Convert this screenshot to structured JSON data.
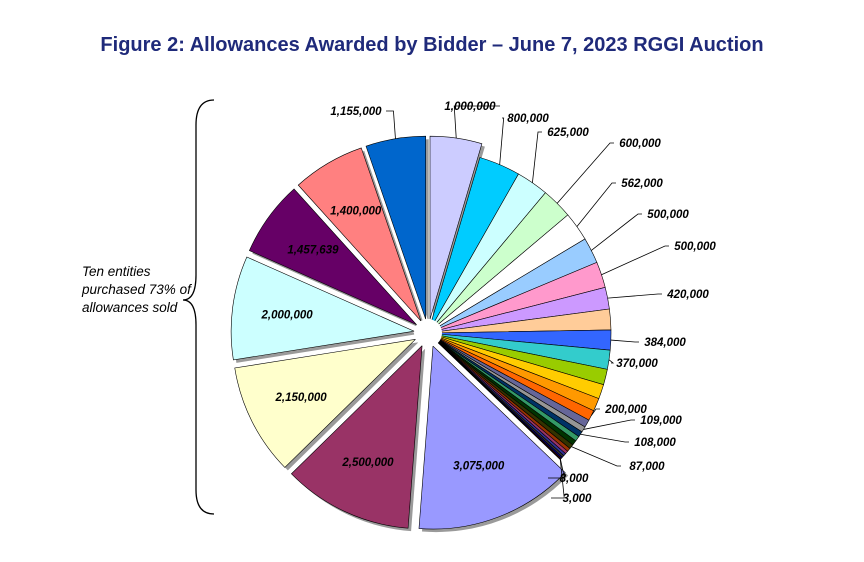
{
  "title": "Figure 2: Allowances Awarded by Bidder – June 7, 2023 RGGI Auction",
  "annotation": "Ten entities purchased 73% of allowances sold",
  "chart_data": {
    "type": "pie",
    "title": "Figure 2: Allowances Awarded by Bidder – June 7, 2023 RGGI Auction",
    "start_angle_deg_clockwise_from_top": 0,
    "slices": [
      {
        "value": 1000000,
        "label": "1,000,000",
        "color": "#ccccff",
        "exploded": true
      },
      {
        "value": 800000,
        "label": "800,000",
        "color": "#00ccff"
      },
      {
        "value": 625000,
        "label": "625,000",
        "color": "#ccffff"
      },
      {
        "value": 600000,
        "label": "600,000",
        "color": "#ccffcc"
      },
      {
        "value": 562000,
        "label": "562,000",
        "color": "#ffffff"
      },
      {
        "value": 500000,
        "label": "500,000",
        "color": "#99ccff"
      },
      {
        "value": 500000,
        "label": "500,000",
        "color": "#ff99cc"
      },
      {
        "value": 420000,
        "label": "420,000",
        "color": "#cc99ff"
      },
      {
        "value": 400000,
        "label": "",
        "color": "#ffcc99"
      },
      {
        "value": 384000,
        "label": "384,000",
        "color": "#3366ff"
      },
      {
        "value": 370000,
        "label": "370,000",
        "color": "#33cccc"
      },
      {
        "value": 300000,
        "label": "",
        "color": "#99cc00"
      },
      {
        "value": 280000,
        "label": "",
        "color": "#ffcc00"
      },
      {
        "value": 250000,
        "label": "",
        "color": "#ff9900"
      },
      {
        "value": 200000,
        "label": "200,000",
        "color": "#ff6600"
      },
      {
        "value": 150000,
        "label": "",
        "color": "#666699"
      },
      {
        "value": 109000,
        "label": "109,000",
        "color": "#969696"
      },
      {
        "value": 108000,
        "label": "108,000",
        "color": "#003366"
      },
      {
        "value": 100000,
        "label": "",
        "color": "#339966"
      },
      {
        "value": 95000,
        "label": "",
        "color": "#003300"
      },
      {
        "value": 87000,
        "label": "87,000",
        "color": "#333300"
      },
      {
        "value": 70000,
        "label": "",
        "color": "#993300"
      },
      {
        "value": 60000,
        "label": "",
        "color": "#993366"
      },
      {
        "value": 50000,
        "label": "",
        "color": "#333399"
      },
      {
        "value": 40000,
        "label": "",
        "color": "#333333"
      },
      {
        "value": 30000,
        "label": "",
        "color": "#000080"
      },
      {
        "value": 20000,
        "label": "",
        "color": "#800000"
      },
      {
        "value": 8000,
        "label": "8,000",
        "color": "#000000"
      },
      {
        "value": 3000,
        "label": "3,000",
        "color": "#000000"
      },
      {
        "value": 3075000,
        "label": "3,075,000",
        "color": "#9999ff",
        "exploded": true
      },
      {
        "value": 2500000,
        "label": "2,500,000",
        "color": "#993366",
        "exploded": true
      },
      {
        "value": 2150000,
        "label": "2,150,000",
        "color": "#ffffcc",
        "exploded": true
      },
      {
        "value": 2000000,
        "label": "2,000,000",
        "color": "#ccffff",
        "exploded": true
      },
      {
        "value": 1457639,
        "label": "1,457,639",
        "color": "#660066",
        "exploded": true
      },
      {
        "value": 1400000,
        "label": "1,400,000",
        "color": "#ff8080",
        "exploded": true
      },
      {
        "value": 1155000,
        "label": "1,155,000",
        "color": "#0066cc",
        "exploded": true
      }
    ]
  }
}
